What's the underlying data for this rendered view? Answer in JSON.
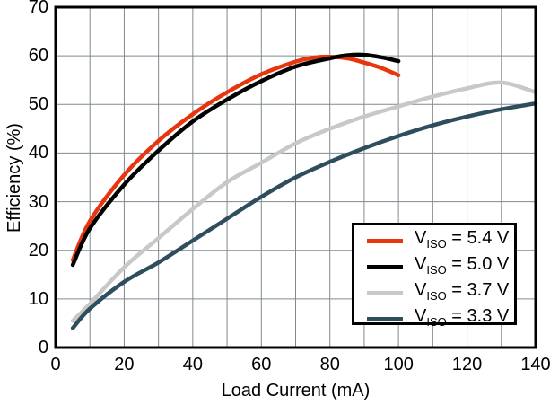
{
  "chart_data": {
    "type": "line",
    "title": "",
    "xlabel": "Load Current (mA)",
    "ylabel": "Efficiency (%)",
    "xlim": [
      0,
      140
    ],
    "ylim": [
      0,
      70
    ],
    "x_ticks": [
      0,
      20,
      40,
      60,
      80,
      100,
      120,
      140
    ],
    "y_ticks": [
      0,
      10,
      20,
      30,
      40,
      50,
      60,
      70
    ],
    "grid": {
      "on": true,
      "x_step": 10,
      "y_step": 10,
      "color": "#818a8f"
    },
    "frame_color": "#000000",
    "legend": {
      "position": "bottom-right",
      "entries": [
        {
          "pre": "V",
          "sub": "ISO",
          "post": " = 5.4 V"
        },
        {
          "pre": "V",
          "sub": "ISO",
          "post": " = 5.0 V"
        },
        {
          "pre": "V",
          "sub": "ISO",
          "post": " = 3.7 V"
        },
        {
          "pre": "V",
          "sub": "ISO",
          "post": " = 3.3 V"
        }
      ]
    },
    "series": [
      {
        "name": "VISO = 5.4 V",
        "color": "#e8350e",
        "points": [
          [
            5,
            18
          ],
          [
            10,
            26
          ],
          [
            20,
            35.5
          ],
          [
            30,
            42.5
          ],
          [
            40,
            48
          ],
          [
            50,
            52.5
          ],
          [
            60,
            56.2
          ],
          [
            70,
            58.8
          ],
          [
            75,
            59.6
          ],
          [
            80,
            59.8
          ],
          [
            85,
            59.5
          ],
          [
            90,
            58.6
          ],
          [
            95,
            57.5
          ],
          [
            100,
            56
          ]
        ]
      },
      {
        "name": "VISO = 5.0 V",
        "color": "#000000",
        "points": [
          [
            5,
            17
          ],
          [
            10,
            24.5
          ],
          [
            20,
            33.5
          ],
          [
            30,
            40.5
          ],
          [
            40,
            46.5
          ],
          [
            50,
            51
          ],
          [
            60,
            54.8
          ],
          [
            70,
            57.8
          ],
          [
            80,
            59.5
          ],
          [
            85,
            60.1
          ],
          [
            90,
            60.2
          ],
          [
            95,
            59.7
          ],
          [
            100,
            58.9
          ]
        ]
      },
      {
        "name": "VISO = 3.7 V",
        "color": "#c8c8c8",
        "points": [
          [
            5,
            5.5
          ],
          [
            10,
            9
          ],
          [
            20,
            16.5
          ],
          [
            30,
            22.5
          ],
          [
            40,
            28.5
          ],
          [
            50,
            34
          ],
          [
            60,
            38
          ],
          [
            70,
            42
          ],
          [
            80,
            45
          ],
          [
            90,
            47.5
          ],
          [
            100,
            49.6
          ],
          [
            110,
            51.6
          ],
          [
            120,
            53.3
          ],
          [
            130,
            54.5
          ],
          [
            140,
            52.5
          ]
        ]
      },
      {
        "name": "VISO = 3.3 V",
        "color": "#2e4d5d",
        "points": [
          [
            5,
            4
          ],
          [
            10,
            8
          ],
          [
            20,
            13.5
          ],
          [
            30,
            17.5
          ],
          [
            40,
            22
          ],
          [
            50,
            26.5
          ],
          [
            60,
            31
          ],
          [
            70,
            35
          ],
          [
            80,
            38.2
          ],
          [
            90,
            41
          ],
          [
            100,
            43.5
          ],
          [
            110,
            45.7
          ],
          [
            120,
            47.5
          ],
          [
            130,
            49
          ],
          [
            140,
            50.2
          ]
        ]
      }
    ]
  }
}
